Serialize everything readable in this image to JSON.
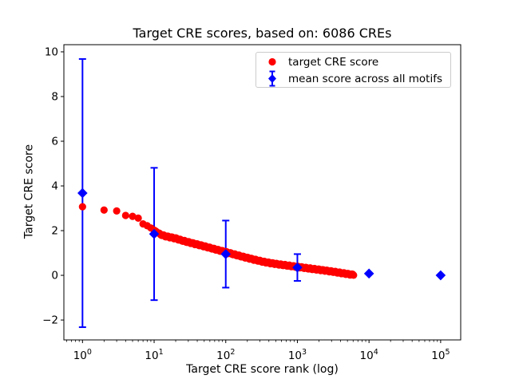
{
  "figure": {
    "background": "#ffffff",
    "frame_color": "#000000"
  },
  "chart_data": {
    "type": "scatter",
    "title": "Target CRE scores, based on: 6086 CREs",
    "xlabel": "Target CRE score rank (log)",
    "ylabel": "Target CRE score",
    "x_scale": "log",
    "xlim_log10": [
      -0.26,
      5.28
    ],
    "ylim": [
      -2.89,
      10.32
    ],
    "x_tick_exponents": [
      0,
      1,
      2,
      3,
      4,
      5
    ],
    "y_ticks": [
      -2,
      0,
      2,
      4,
      6,
      8,
      10
    ],
    "grid": false,
    "legend_position": "upper right",
    "series": [
      {
        "name": "target CRE score",
        "marker": "circle",
        "color": "#ff0000",
        "n_points": 6086,
        "anchor_ranks": [
          1,
          2,
          3,
          4,
          5,
          6,
          7,
          8,
          9,
          10,
          12,
          14,
          17,
          20,
          25,
          32,
          40,
          50,
          65,
          80,
          100,
          130,
          160,
          200,
          250,
          320,
          400,
          500,
          650,
          800,
          1000,
          1300,
          1600,
          2000,
          2600,
          3200,
          4000,
          5000,
          6086
        ],
        "anchor_scores": [
          3.07,
          2.92,
          2.88,
          2.68,
          2.64,
          2.56,
          2.3,
          2.22,
          2.12,
          2.02,
          1.85,
          1.76,
          1.7,
          1.65,
          1.55,
          1.46,
          1.38,
          1.3,
          1.2,
          1.12,
          1.04,
          0.94,
          0.86,
          0.78,
          0.7,
          0.62,
          0.56,
          0.51,
          0.46,
          0.42,
          0.38,
          0.33,
          0.29,
          0.25,
          0.2,
          0.16,
          0.11,
          0.06,
          0.02
        ]
      },
      {
        "name": "mean score across all motifs",
        "marker": "diamond",
        "color": "#0000ff",
        "error_caps": true,
        "ranks": [
          1,
          10,
          100,
          1000,
          10000,
          100000
        ],
        "means": [
          3.68,
          1.85,
          0.95,
          0.35,
          0.08,
          0.0
        ],
        "errors": [
          6.0,
          2.96,
          1.5,
          0.6,
          0.0,
          0.0
        ]
      }
    ]
  }
}
